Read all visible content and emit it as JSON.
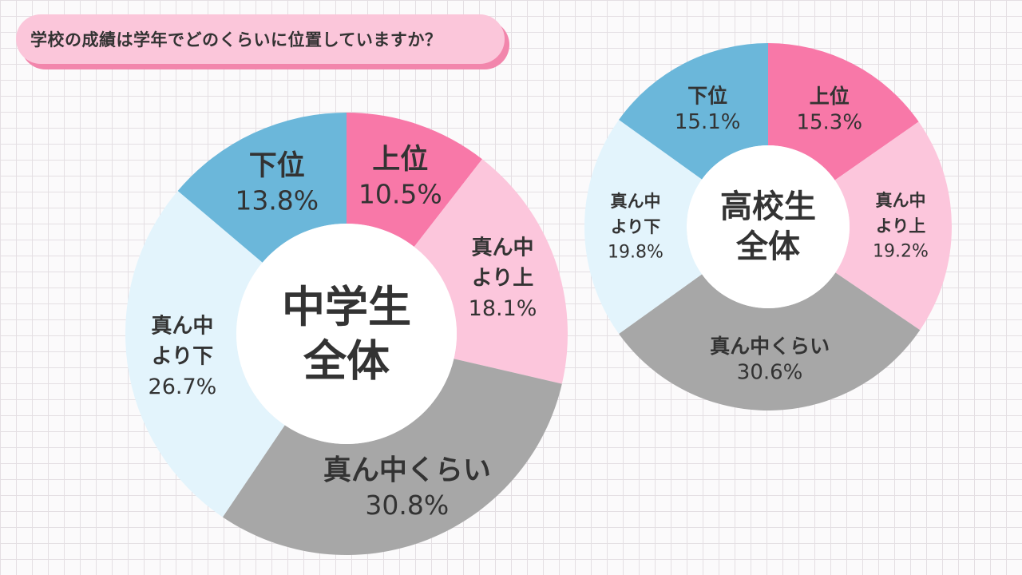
{
  "question": "学校の成績は学年でどのくらいに位置していますか？",
  "colors": {
    "上位": "#f878a8",
    "真ん中より上": "#fcc6dc",
    "真ん中くらい": "#a7a7a7",
    "真ん中より下": "#e3f4fc",
    "下位": "#6bb7da",
    "text": "#333333"
  },
  "chart_data": [
    {
      "type": "pie",
      "title": "中学生 全体",
      "title_lines": [
        "中学生",
        "全体"
      ],
      "slices": [
        {
          "name": "上位",
          "label_lines": [
            "上位"
          ],
          "value": 10.5,
          "pct": "10.5%"
        },
        {
          "name": "真ん中より上",
          "label_lines": [
            "真ん中",
            "より上"
          ],
          "value": 18.1,
          "pct": "18.1%"
        },
        {
          "name": "真ん中くらい",
          "label_lines": [
            "真ん中くらい"
          ],
          "value": 30.8,
          "pct": "30.8%"
        },
        {
          "name": "真ん中より下",
          "label_lines": [
            "真ん中",
            "より下"
          ],
          "value": 26.7,
          "pct": "26.7%"
        },
        {
          "name": "下位",
          "label_lines": [
            "下位"
          ],
          "value": 13.8,
          "pct": "13.8%"
        }
      ]
    },
    {
      "type": "pie",
      "title": "高校生 全体",
      "title_lines": [
        "高校生",
        "全体"
      ],
      "slices": [
        {
          "name": "上位",
          "label_lines": [
            "上位"
          ],
          "value": 15.3,
          "pct": "15.3%"
        },
        {
          "name": "真ん中より上",
          "label_lines": [
            "真ん中",
            "より上"
          ],
          "value": 19.2,
          "pct": "19.2%"
        },
        {
          "name": "真ん中くらい",
          "label_lines": [
            "真ん中くらい"
          ],
          "value": 30.6,
          "pct": "30.6%"
        },
        {
          "name": "真ん中より下",
          "label_lines": [
            "真ん中",
            "より下"
          ],
          "value": 19.8,
          "pct": "19.8%"
        },
        {
          "name": "下位",
          "label_lines": [
            "下位"
          ],
          "value": 15.1,
          "pct": "15.1%"
        }
      ]
    }
  ]
}
